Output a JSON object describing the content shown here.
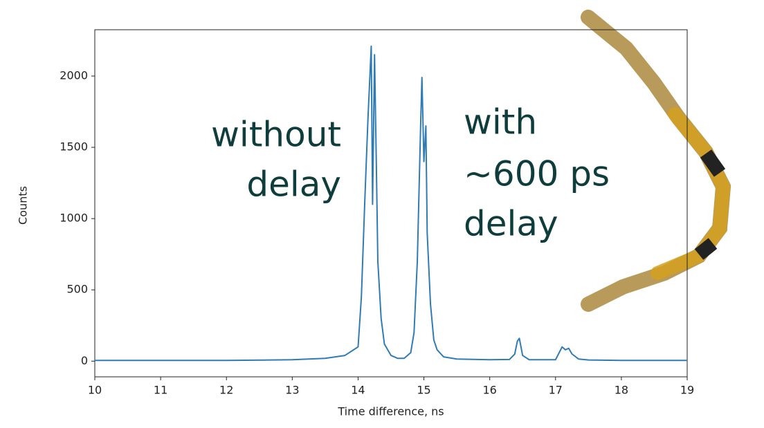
{
  "chart_data": {
    "type": "line",
    "xlabel": "Time difference, ns",
    "ylabel": "Counts",
    "x": [
      10,
      12,
      13,
      13.5,
      13.8,
      14.0,
      14.05,
      14.1,
      14.15,
      14.2,
      14.22,
      14.25,
      14.28,
      14.3,
      14.35,
      14.4,
      14.5,
      14.6,
      14.7,
      14.8,
      14.85,
      14.9,
      14.95,
      14.97,
      15.0,
      15.03,
      15.05,
      15.1,
      15.15,
      15.2,
      15.3,
      15.5,
      16.0,
      16.3,
      16.38,
      16.42,
      16.45,
      16.5,
      16.6,
      17.0,
      17.1,
      17.15,
      17.2,
      17.25,
      17.35,
      17.5,
      18,
      19
    ],
    "series": [
      {
        "name": "Counts",
        "color": "#2f7bb6",
        "values": [
          5,
          5,
          10,
          20,
          40,
          100,
          450,
          1100,
          1700,
          2210,
          1100,
          2150,
          1300,
          700,
          300,
          120,
          40,
          20,
          20,
          60,
          200,
          700,
          1650,
          1990,
          1400,
          1650,
          900,
          400,
          150,
          80,
          30,
          15,
          10,
          12,
          50,
          140,
          160,
          40,
          10,
          10,
          100,
          80,
          90,
          50,
          15,
          8,
          5,
          5
        ]
      }
    ],
    "xlim": [
      10,
      19
    ],
    "xticks": [
      10,
      11,
      12,
      13,
      14,
      15,
      16,
      17,
      18,
      19
    ],
    "ylim": [
      -110,
      2325
    ],
    "yticks": [
      0,
      500,
      1000,
      1500,
      2000
    ],
    "annotations": [
      [
        "without",
        "delay"
      ],
      [
        "with",
        "~600 ps",
        "delay"
      ]
    ]
  }
}
